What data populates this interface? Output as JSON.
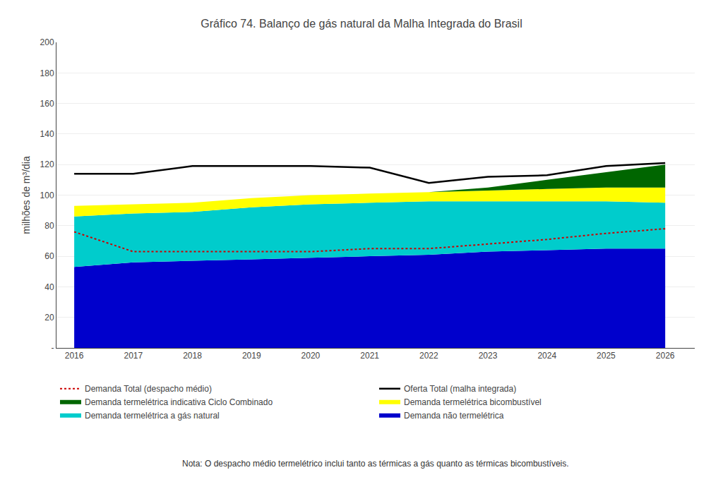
{
  "chart_data": {
    "type": "area",
    "stacked": true,
    "title": "Gráfico 74. Balanço de gás natural da Malha Integrada do Brasil",
    "y_label": "milhões de m³/dia",
    "annotations": [
      "Nota: O despacho médio termelétrico inclui tanto as térmicas a gás quanto as térmicas bicombustíveis."
    ],
    "x": [
      2016,
      2017,
      2018,
      2019,
      2020,
      2021,
      2022,
      2023,
      2024,
      2025,
      2026
    ],
    "series": [
      {
        "name": "Demanda não termelétrica",
        "type": "area",
        "color": "#0000cc",
        "values": [
          53,
          56,
          57,
          58,
          59,
          60,
          61,
          63,
          64,
          65,
          65
        ]
      },
      {
        "name": "Demanda termelétrica a gás natural",
        "type": "area",
        "color": "#00cccc",
        "values": [
          33,
          32,
          32,
          34,
          35,
          35,
          35,
          33,
          32,
          31,
          30
        ]
      },
      {
        "name": "Demanda termelétrica bicombustível",
        "type": "area",
        "color": "#ffff00",
        "values": [
          7,
          6,
          6,
          6,
          6,
          6,
          6,
          7,
          8,
          9,
          10
        ]
      },
      {
        "name": "Demanda termelétrica indicativa Ciclo Combinado",
        "type": "area",
        "color": "#006600",
        "values": [
          0,
          0,
          0,
          0,
          0,
          0,
          0,
          2,
          6,
          10,
          15
        ]
      },
      {
        "name": "Oferta Total (malha integrada)",
        "type": "line",
        "color": "#000000",
        "line_style": "solid",
        "values": [
          114,
          114,
          119,
          119,
          119,
          118,
          108,
          112,
          113,
          119,
          121
        ]
      },
      {
        "name": "Demanda Total (despacho médio)",
        "type": "line",
        "color": "#cc0000",
        "line_style": "dotted",
        "values": [
          76,
          63,
          63,
          63,
          63,
          65,
          65,
          68,
          71,
          75,
          78
        ]
      }
    ],
    "xlim": [
      2015.7,
      2026.5
    ],
    "xticks": [
      2016,
      2017,
      2018,
      2019,
      2020,
      2021,
      2022,
      2023,
      2024,
      2025,
      2026
    ],
    "ylim": [
      0,
      200
    ],
    "yticks": [
      {
        "value": 0,
        "label": "-"
      },
      20,
      40,
      60,
      80,
      100,
      120,
      140,
      160,
      180,
      200
    ],
    "grid": "y",
    "legend": "bottom"
  }
}
